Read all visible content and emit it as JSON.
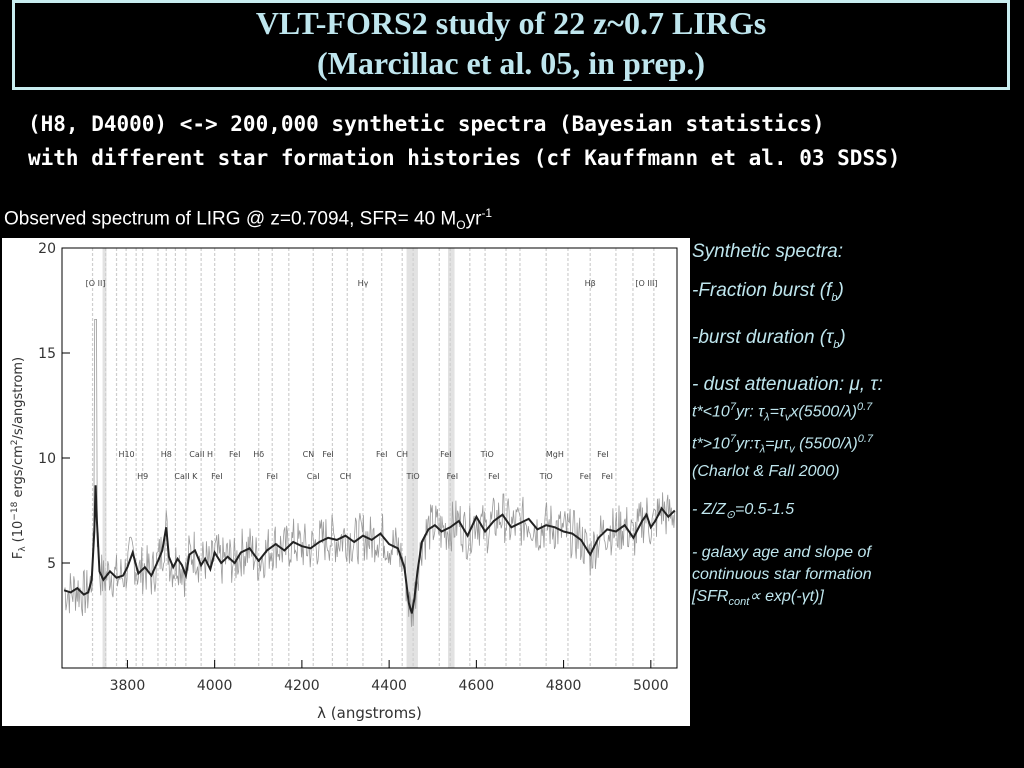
{
  "slide": {
    "title_line1": "VLT-FORS2 study of 22 z~0.7 LIRGs",
    "title_line2": "(Marcillac et al. 05, in prep.)",
    "subtitle_line1": "(H8, D4000) <-> 200,000 synthetic spectra  (Bayesian statistics)",
    "subtitle_line2": "with different star formation histories (cf Kauffmann et al. 03 SDSS)",
    "caption_prefix": "Observed spectrum of LIRG @ z=0.7094, SFR= 40 M",
    "caption_sub": "O",
    "caption_yr": "yr",
    "caption_sup": "-1",
    "accent_color": "#bfe6ee",
    "border_color": "#c9eef0"
  },
  "side": {
    "heading": "Synthetic spectra:",
    "fb_pre": "-Fraction burst (f",
    "fb_sub": "b",
    "fb_post": ")",
    "tb_pre": "-burst duration (",
    "tb_sym": "τ",
    "tb_sub": "b",
    "tb_post": ")",
    "dust": "- dust attenuation: μ, τ:",
    "dust1_a": "t*<10",
    "dust1_sup": "7",
    "dust1_b": "yr: τ",
    "dust1_sub1": "λ",
    "dust1_c": "=τ",
    "dust1_sub2": "v",
    "dust1_d": "x(5500/λ)",
    "dust1_sup2": "0.7",
    "dust2_a": "t*>10",
    "dust2_sup": "7",
    "dust2_b": "yr:τ",
    "dust2_sub1": "λ",
    "dust2_c": "=μτ",
    "dust2_sub2": "v",
    "dust2_d": " (5500/λ)",
    "dust2_sup2": "0.7",
    "dust_ref": "(Charlot & Fall 2000)",
    "z_pre": "- Z/Z",
    "z_sub": "⊙",
    "z_post": "=0.5-1.5",
    "age1": "- galaxy age and slope of",
    "age2": "continuous star formation",
    "sfr_pre": "[SFR",
    "sfr_sub": "cont",
    "sfr_post": "∝ exp(-γt)]"
  },
  "chart_data": {
    "type": "line",
    "xlabel": "λ (angstroms)",
    "ylabel": "F_λ (10^-18 ergs/cm^2/s/angstrom)",
    "ylabel_main": "F",
    "ylabel_sub": "λ",
    "ylabel_rest": "(10",
    "ylabel_exp1": "−18",
    "ylabel_rest2": " ergs/cm",
    "ylabel_exp2": "2",
    "ylabel_rest3": "/s/angstrom)",
    "xlim": [
      3650,
      5060
    ],
    "ylim": [
      0,
      20
    ],
    "xticks": [
      3800,
      4000,
      4200,
      4400,
      4600,
      4800,
      5000
    ],
    "yticks": [
      5,
      10,
      15,
      20
    ],
    "shaded_bands": [
      [
        3743,
        3752
      ],
      [
        4440,
        4466
      ],
      [
        4535,
        4550
      ]
    ],
    "line_markers": [
      3720,
      3750,
      3775,
      3797,
      3820,
      3835,
      3870,
      3889,
      3910,
      3934,
      3969,
      4000,
      4046,
      4101,
      4132,
      4170,
      4226,
      4270,
      4304,
      4340,
      4383,
      4430,
      4455,
      4515,
      4540,
      4585,
      4620,
      4668,
      4700,
      4760,
      4810,
      4861,
      4920,
      4959,
      5007
    ],
    "line_labels_top": [
      {
        "text": "[O II]",
        "x": 3727
      },
      {
        "text": "Hγ",
        "x": 4340
      },
      {
        "text": "Hβ",
        "x": 4861
      },
      {
        "text": "[O III]",
        "x": 4990
      }
    ],
    "line_labels_mid": [
      {
        "text": "H10",
        "x": 3798
      },
      {
        "text": "H8",
        "x": 3889
      },
      {
        "text": "CaII H",
        "x": 3969
      },
      {
        "text": "FeI",
        "x": 4046
      },
      {
        "text": "Hδ",
        "x": 4101
      },
      {
        "text": "CN",
        "x": 4215
      },
      {
        "text": "FeI",
        "x": 4260
      },
      {
        "text": "FeI",
        "x": 4383
      },
      {
        "text": "CH",
        "x": 4430
      },
      {
        "text": "FeI",
        "x": 4530
      },
      {
        "text": "TiO",
        "x": 4625
      },
      {
        "text": "MgH",
        "x": 4780
      },
      {
        "text": "FeI",
        "x": 4890
      }
    ],
    "line_labels_low": [
      {
        "text": "H9",
        "x": 3835
      },
      {
        "text": "CaII K",
        "x": 3934
      },
      {
        "text": "FeI",
        "x": 4005
      },
      {
        "text": "FeI",
        "x": 4132
      },
      {
        "text": "CaI",
        "x": 4226
      },
      {
        "text": "CH",
        "x": 4300
      },
      {
        "text": "TiO",
        "x": 4455
      },
      {
        "text": "FeI",
        "x": 4545
      },
      {
        "text": "FeI",
        "x": 4640
      },
      {
        "text": "TiO",
        "x": 4760
      },
      {
        "text": "FeI",
        "x": 4850
      },
      {
        "text": "FeI",
        "x": 4900
      }
    ],
    "series": [
      {
        "color": "#222222",
        "x": [
          3655,
          3670,
          3685,
          3700,
          3710,
          3718,
          3724,
          3727,
          3730,
          3736,
          3745,
          3760,
          3775,
          3790,
          3800,
          3812,
          3825,
          3840,
          3855,
          3870,
          3880,
          3889,
          3895,
          3905,
          3915,
          3925,
          3934,
          3942,
          3955,
          3969,
          3978,
          3990,
          4000,
          4015,
          4030,
          4046,
          4060,
          4080,
          4101,
          4120,
          4140,
          4160,
          4180,
          4200,
          4220,
          4240,
          4260,
          4280,
          4300,
          4320,
          4340,
          4360,
          4380,
          4400,
          4420,
          4435,
          4445,
          4452,
          4458,
          4465,
          4475,
          4490,
          4505,
          4520,
          4540,
          4560,
          4580,
          4600,
          4620,
          4640,
          4660,
          4680,
          4700,
          4720,
          4740,
          4760,
          4780,
          4800,
          4820,
          4840,
          4861,
          4880,
          4900,
          4920,
          4940,
          4960,
          4980,
          4990,
          5000,
          5010,
          5025,
          5040,
          5055
        ],
        "y": [
          3.7,
          3.6,
          3.8,
          3.5,
          3.6,
          4.2,
          6.5,
          8.7,
          7.0,
          4.6,
          4.2,
          4.6,
          4.3,
          4.4,
          4.8,
          5.5,
          4.5,
          4.8,
          4.4,
          5.1,
          5.6,
          6.7,
          5.3,
          4.8,
          5.2,
          4.9,
          4.4,
          5.4,
          5.6,
          4.9,
          5.2,
          4.7,
          5.5,
          5.0,
          5.3,
          5.0,
          5.5,
          5.7,
          5.1,
          5.6,
          5.9,
          5.6,
          6.0,
          5.8,
          5.7,
          6.0,
          6.2,
          6.1,
          6.3,
          6.0,
          6.3,
          6.1,
          6.4,
          5.9,
          5.7,
          4.8,
          3.1,
          2.6,
          3.3,
          4.6,
          6.0,
          6.6,
          6.8,
          6.5,
          6.7,
          7.0,
          6.3,
          7.2,
          6.5,
          7.0,
          7.3,
          6.7,
          6.9,
          7.1,
          6.6,
          6.8,
          6.7,
          6.5,
          6.4,
          6.1,
          5.4,
          6.2,
          6.6,
          6.5,
          6.8,
          6.2,
          7.0,
          7.3,
          6.7,
          7.0,
          7.6,
          7.2,
          7.5
        ]
      }
    ]
  }
}
